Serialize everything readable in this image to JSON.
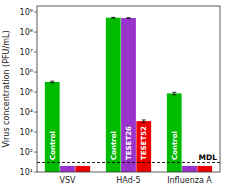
{
  "chart_data": {
    "type": "bar",
    "categories": [
      "VSV",
      "HAd-5",
      "Influenza A"
    ],
    "series": [
      {
        "name": "Control",
        "color": "#00bb00",
        "values": [
          320000,
          520000000,
          85000
        ],
        "errors": [
          30000,
          20000000,
          12000
        ]
      },
      {
        "name": "TESET26",
        "color": "#9933cc",
        "values": [
          20,
          500000000,
          20
        ],
        "errors": [
          0,
          15000000,
          0
        ]
      },
      {
        "name": "TESET52",
        "color": "#ee0000",
        "values": [
          20,
          3500,
          20
        ],
        "errors": [
          0,
          500,
          0
        ]
      }
    ],
    "ylabel": "Virus concentration (PFU/mL)",
    "ylim": [
      10,
      2000000000
    ],
    "yticks": [
      {
        "value": 10,
        "label": "10¹"
      },
      {
        "value": 100,
        "label": "10²"
      },
      {
        "value": 1000,
        "label": "10³"
      },
      {
        "value": 10000,
        "label": "10⁴"
      },
      {
        "value": 100000,
        "label": "10⁵"
      },
      {
        "value": 1000000,
        "label": "10⁶"
      },
      {
        "value": 10000000,
        "label": "10⁷"
      },
      {
        "value": 100000000,
        "label": "10⁸"
      },
      {
        "value": 1000000000,
        "label": "10⁹"
      }
    ],
    "log": "y",
    "grid": false,
    "annotations": [
      {
        "text": "MDL",
        "y": 30
      }
    ]
  }
}
